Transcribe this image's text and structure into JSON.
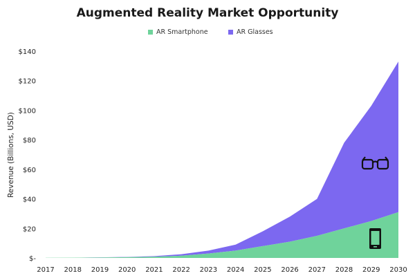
{
  "chart_data": {
    "type": "area",
    "title": "Augmented Reality Market Opportunity",
    "xlabel": "",
    "ylabel": "Revenue (Billions, USD)",
    "ylim": [
      0,
      140
    ],
    "yticks": [
      0,
      20,
      40,
      60,
      80,
      100,
      120,
      140
    ],
    "ytick_labels": [
      "$-",
      "$20",
      "$40",
      "$60",
      "$80",
      "$100",
      "$120",
      "$140"
    ],
    "x": [
      "2017",
      "2018",
      "2019",
      "2020",
      "2021",
      "2022",
      "2023",
      "2024",
      "2025",
      "2026",
      "2027",
      "2028",
      "2029",
      "2030"
    ],
    "stacked": true,
    "grid": "none",
    "legend_position": "top",
    "series": [
      {
        "name": "AR Smartphone",
        "color": "#6fd39b",
        "values": [
          0.1,
          0.2,
          0.3,
          0.5,
          0.8,
          1.5,
          3,
          5,
          8,
          11,
          15,
          20,
          25,
          31
        ]
      },
      {
        "name": "AR Glasses",
        "color": "#7c68f0",
        "values": [
          0,
          0,
          0.1,
          0.2,
          0.4,
          1,
          2,
          4,
          10,
          17,
          25,
          58,
          78,
          102
        ]
      }
    ],
    "annotations": [
      {
        "icon": "glasses-icon",
        "series": "AR Glasses"
      },
      {
        "icon": "smartphone-icon",
        "series": "AR Smartphone"
      }
    ]
  }
}
